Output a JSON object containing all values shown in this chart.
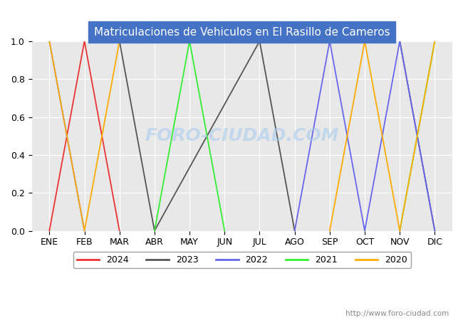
{
  "title": "Matriculaciones de Vehiculos en El Rasillo de Cameros",
  "title_bg_color": "#4472C4",
  "title_text_color": "#FFFFFF",
  "plot_bg_color": "#E8E8E8",
  "grid_color": "#FFFFFF",
  "ylim": [
    0.0,
    1.0
  ],
  "yticks": [
    0.0,
    0.2,
    0.4,
    0.6,
    0.8,
    1.0
  ],
  "months": [
    "ENE",
    "FEB",
    "MAR",
    "ABR",
    "MAY",
    "JUN",
    "JUL",
    "AGO",
    "SEP",
    "OCT",
    "NOV",
    "DIC"
  ],
  "watermark": "http://www.foro-ciudad.com",
  "center_watermark": "FORO-CIUDAD.COM",
  "series": [
    {
      "label": "2024",
      "color": "#EE3333",
      "segments": [
        {
          "x": [
            1,
            2,
            3
          ],
          "y": [
            0.0,
            1.0,
            0.0
          ]
        }
      ]
    },
    {
      "label": "2023",
      "color": "#555555",
      "segments": [
        {
          "x": [
            3,
            3,
            4,
            7,
            8
          ],
          "y": [
            1.0,
            1.0,
            0.0,
            1.0,
            0.0
          ]
        },
        {
          "x": [
            11,
            12
          ],
          "y": [
            1.0,
            0.0
          ]
        }
      ]
    },
    {
      "label": "2022",
      "color": "#6666EE",
      "segments": [
        {
          "x": [
            1,
            2
          ],
          "y": [
            1.0,
            0.0
          ]
        },
        {
          "x": [
            8,
            9,
            10
          ],
          "y": [
            0.0,
            1.0,
            0.0
          ]
        },
        {
          "x": [
            10,
            11,
            12
          ],
          "y": [
            0.0,
            1.0,
            0.0
          ]
        }
      ]
    },
    {
      "label": "2021",
      "color": "#33EE33",
      "segments": [
        {
          "x": [
            4,
            5,
            6
          ],
          "y": [
            0.0,
            1.0,
            0.0
          ]
        },
        {
          "x": [
            11,
            12
          ],
          "y": [
            0.0,
            1.0
          ]
        }
      ]
    },
    {
      "label": "2020",
      "color": "#FFAA00",
      "segments": [
        {
          "x": [
            1,
            2,
            3
          ],
          "y": [
            1.0,
            0.0,
            1.0
          ]
        },
        {
          "x": [
            9,
            10,
            11
          ],
          "y": [
            0.0,
            1.0,
            0.0
          ]
        },
        {
          "x": [
            11,
            12
          ],
          "y": [
            0.0,
            1.0
          ]
        }
      ]
    }
  ],
  "legend_order": [
    "2024",
    "2023",
    "2022",
    "2021",
    "2020"
  ],
  "figsize": [
    6.5,
    4.5
  ],
  "dpi": 100
}
